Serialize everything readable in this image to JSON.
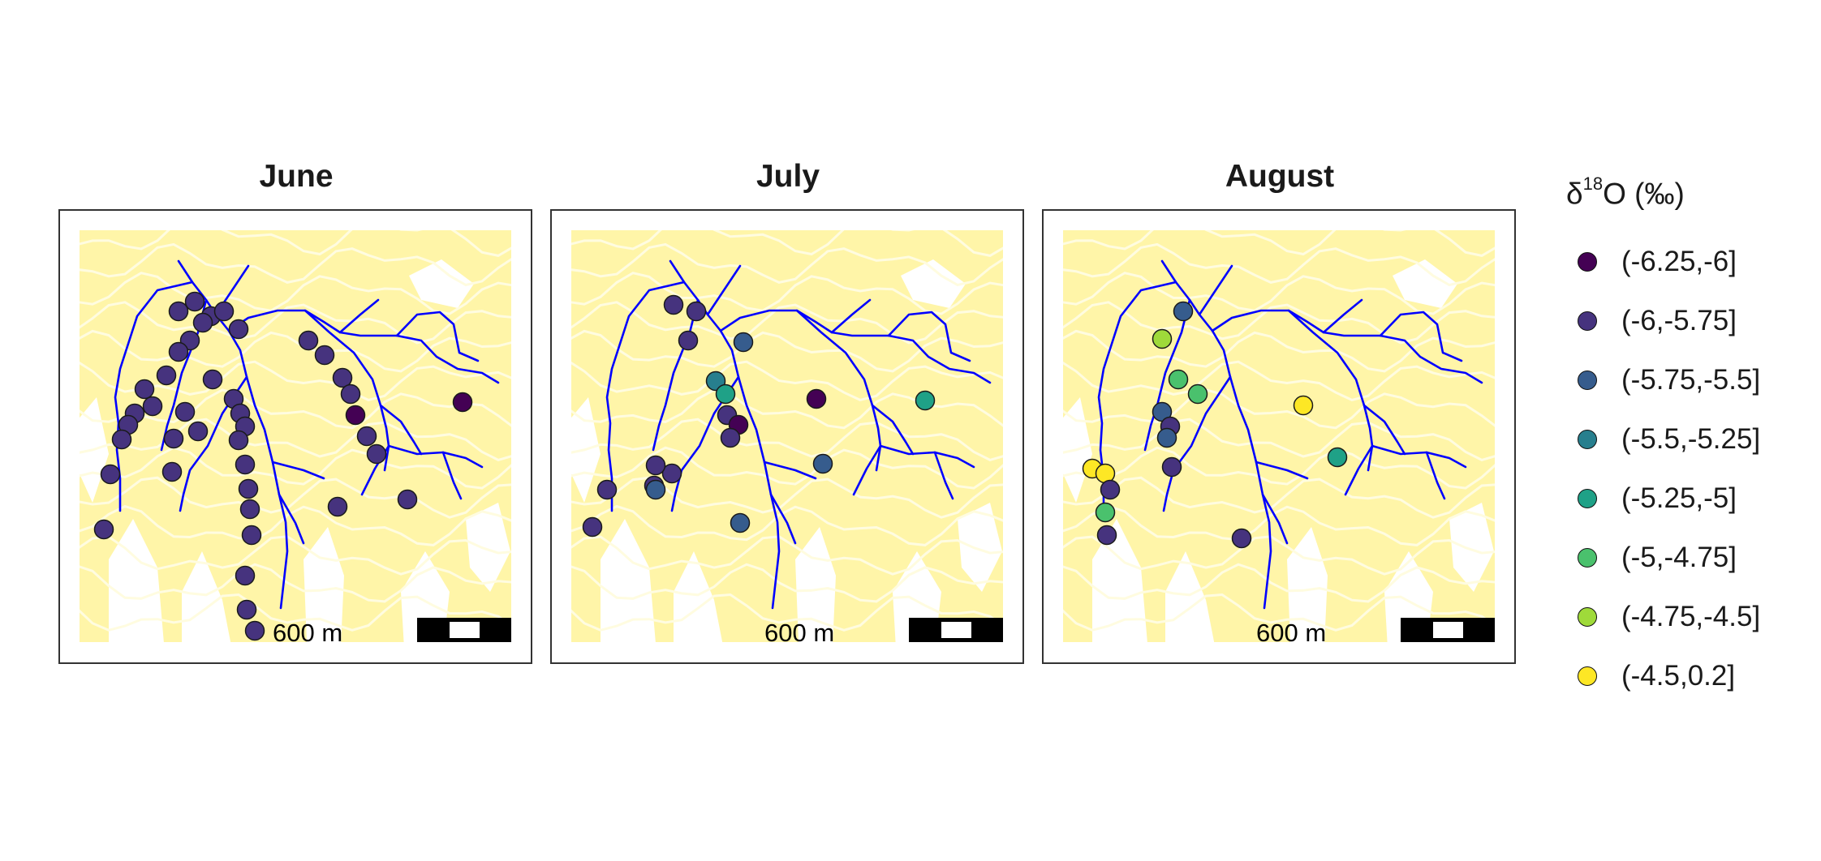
{
  "panels": [
    {
      "title": "June",
      "scale_label": "600 m",
      "sample_classes": [
        1,
        1,
        1,
        1,
        1,
        1,
        1,
        1,
        1,
        1,
        1,
        1,
        1,
        1,
        1,
        1,
        1,
        1,
        1,
        1,
        1,
        1,
        1,
        1,
        1,
        1,
        1,
        1,
        1,
        1,
        1,
        1,
        1,
        1,
        1,
        1,
        0,
        1,
        1,
        1,
        1,
        0
      ]
    },
    {
      "title": "July",
      "scale_label": "600 m",
      "sample_classes": [
        1,
        1,
        1,
        2,
        3,
        4,
        1,
        0,
        1,
        1,
        1,
        1,
        1,
        2,
        2,
        1,
        0,
        2,
        4
      ]
    },
    {
      "title": "August",
      "scale_label": "600 m",
      "sample_classes": [
        2,
        6,
        5,
        5,
        2,
        1,
        2,
        1,
        7,
        7,
        1,
        5,
        1,
        7,
        4,
        1
      ]
    }
  ],
  "legend": {
    "title_symbol": "δ",
    "title_superscript": "18",
    "title_rest": "O (‰)",
    "items": [
      {
        "label": "(-6.25,-6]",
        "color": "#440154"
      },
      {
        "label": "(-6,-5.75]",
        "color": "#46337E"
      },
      {
        "label": "(-5.75,-5.5]",
        "color": "#365C8D"
      },
      {
        "label": "(-5.5,-5.25]",
        "color": "#277F8E"
      },
      {
        "label": "(-5.25,-5]",
        "color": "#1FA187"
      },
      {
        "label": "(-5,-4.75]",
        "color": "#4AC16D"
      },
      {
        "label": "(-4.75,-4.5]",
        "color": "#9FDA3A"
      },
      {
        "label": "(-4.5,0.2]",
        "color": "#FDE725"
      }
    ]
  },
  "colors": {
    "terrain": "#FFF5A8",
    "contour_line": "#FFFCE0",
    "stream": "#0000FF",
    "point_outline": "#1a1a1a"
  }
}
